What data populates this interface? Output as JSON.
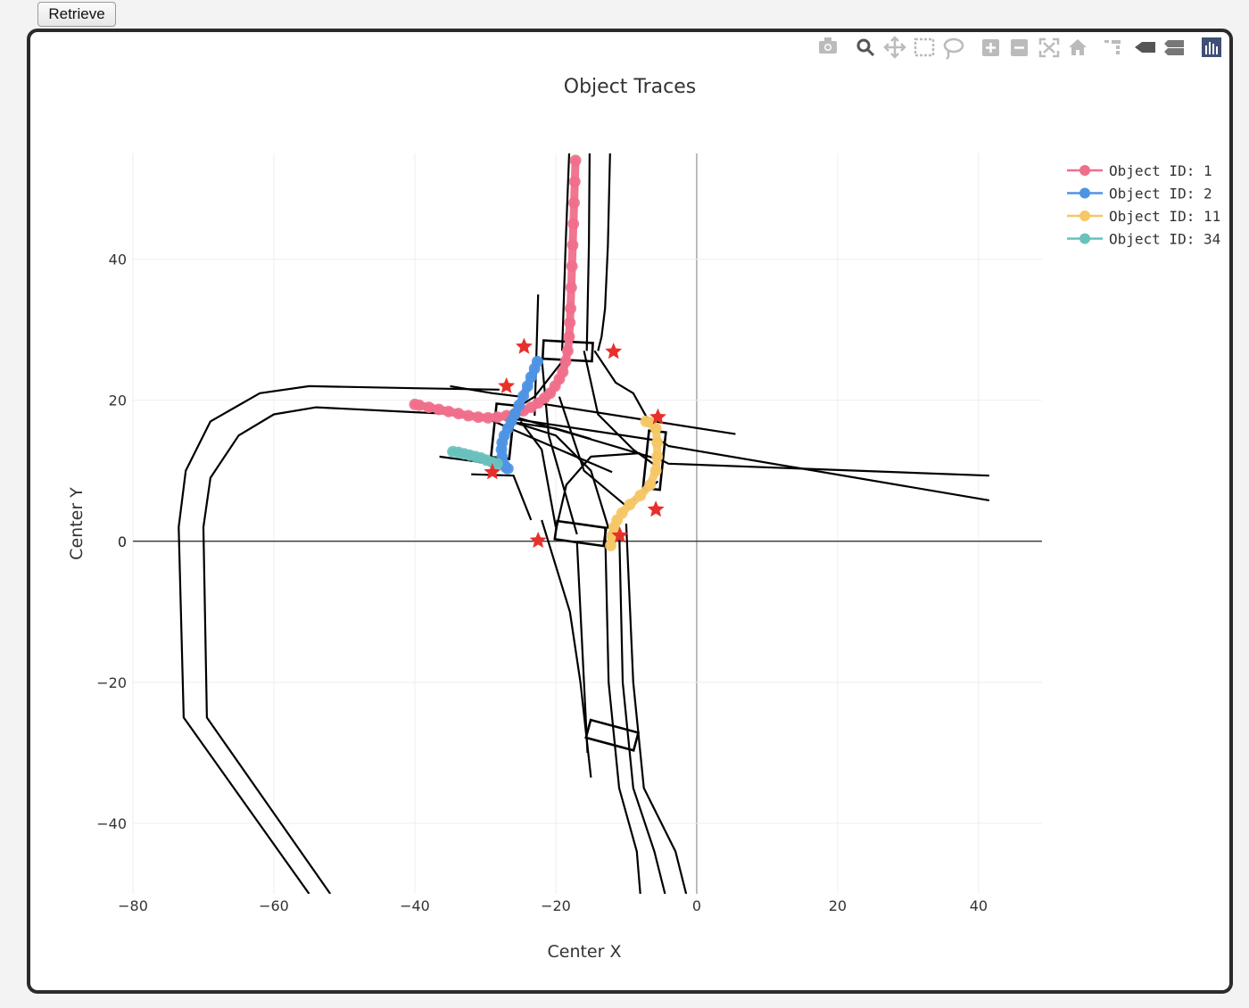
{
  "toolbar": {
    "retrieve_label": "Retrieve",
    "modebar_icons": [
      "camera-icon",
      "zoom-icon",
      "pan-icon",
      "box-select-icon",
      "lasso-select-icon",
      "zoom-in-icon",
      "zoom-out-icon",
      "autoscale-icon",
      "reset-axes-icon",
      "spike-lines-icon",
      "hover-closest-icon",
      "hover-compare-icon",
      "plotly-logo-icon"
    ]
  },
  "chart_data": {
    "type": "scatter",
    "title": "Object Traces",
    "xlabel": "Center X",
    "ylabel": "Center Y",
    "xlim": [
      -80,
      49
    ],
    "ylim": [
      -50,
      55
    ],
    "xticks": [
      -80,
      -60,
      -40,
      -20,
      0,
      20,
      40
    ],
    "yticks": [
      -40,
      -20,
      0,
      20,
      40
    ],
    "grid": true,
    "legend_position": "top-right",
    "series": [
      {
        "name": "Object ID: 1",
        "color": "#ef6f8b",
        "x": [
          -17.2,
          -17.3,
          -17.4,
          -17.5,
          -17.6,
          -17.7,
          -17.8,
          -17.9,
          -18.0,
          -18.1,
          -18.3,
          -18.6,
          -19.0,
          -19.5,
          -20.1,
          -20.8,
          -21.6,
          -22.5,
          -23.5,
          -24.6,
          -25.8,
          -27.0,
          -28.3,
          -29.6,
          -31.0,
          -32.4,
          -33.8,
          -35.2,
          -36.6,
          -38.0,
          -39.4,
          -40.0
        ],
        "y": [
          54,
          51,
          48,
          45,
          42,
          39,
          36,
          33,
          31,
          29,
          27,
          25.5,
          24,
          23,
          22,
          21,
          20.3,
          19.6,
          19.0,
          18.5,
          18.1,
          17.8,
          17.6,
          17.5,
          17.6,
          17.8,
          18.1,
          18.4,
          18.7,
          19.0,
          19.3,
          19.4
        ]
      },
      {
        "name": "Object ID: 2",
        "color": "#4f94e3",
        "x": [
          -22.6,
          -23.0,
          -23.5,
          -24.0,
          -24.6,
          -25.2,
          -25.8,
          -26.3,
          -26.8,
          -27.3,
          -27.6,
          -27.7,
          -27.6,
          -27.4,
          -27.1,
          -26.8
        ],
        "y": [
          25.5,
          24.5,
          23.3,
          22.0,
          20.6,
          19.3,
          18.0,
          17.0,
          16.0,
          15.0,
          14.0,
          13.0,
          12.0,
          11.0,
          10.5,
          10.3
        ]
      },
      {
        "name": "Object ID: 11",
        "color": "#f5c766",
        "x": [
          -7.2,
          -6.5,
          -5.8,
          -5.6,
          -5.6,
          -5.8,
          -6.6,
          -8.0,
          -9.5,
          -10.6,
          -11.3,
          -11.7,
          -12.0,
          -12.2
        ],
        "y": [
          17.0,
          16.8,
          16.0,
          14.0,
          12.0,
          10.0,
          8.0,
          6.5,
          5.2,
          4.0,
          3.0,
          2.0,
          0.8,
          -0.6
        ]
      },
      {
        "name": "Object ID: 34",
        "color": "#68c1bd",
        "x": [
          -34.6,
          -33.8,
          -33.0,
          -32.2,
          -31.4,
          -30.6,
          -29.8,
          -29.0,
          -28.3
        ],
        "y": [
          12.7,
          12.6,
          12.4,
          12.2,
          12.0,
          11.8,
          11.5,
          11.2,
          11.0
        ]
      }
    ],
    "markers": {
      "symbol": "star",
      "color": "#e8302a",
      "x": [
        -24.5,
        -11.8,
        -27.0,
        -29.0,
        -5.5,
        -5.8,
        -22.5,
        -10.9
      ],
      "y": [
        27.6,
        26.9,
        22.0,
        9.8,
        17.6,
        4.5,
        0.1,
        0.8
      ]
    },
    "map_lines": {
      "color": "#000000",
      "lines": [
        {
          "x": [
            -18.1,
            -18.6,
            -19.1
          ],
          "y": [
            55,
            42,
            27
          ]
        },
        {
          "x": [
            -12.3,
            -12.6,
            -13.0,
            -13.5,
            -14.0
          ],
          "y": [
            55,
            42,
            33,
            29,
            27
          ]
        },
        {
          "x": [
            -15.2,
            -15.3,
            -15.6
          ],
          "y": [
            55,
            42,
            27
          ]
        },
        {
          "x": [
            -18.3,
            -23.0,
            -27.5,
            -40.0,
            -54.0,
            -60.0,
            -65.0,
            -69.0,
            -70.0,
            -69.5,
            -52.0
          ],
          "y": [
            26.5,
            20.5,
            17.7,
            18.3,
            19.0,
            18.0,
            15.0,
            9.0,
            2.0,
            -25.0,
            -50.0
          ]
        },
        {
          "x": [
            -28.0,
            -40.0,
            -55.0,
            -62.0,
            -69.0,
            -72.5,
            -73.5,
            -72.8,
            -55.0
          ],
          "y": [
            21.5,
            21.7,
            22.0,
            21.0,
            17.0,
            10.0,
            2.0,
            -25.0,
            -50.0
          ]
        },
        {
          "x": [
            -27.0,
            -5.0,
            -4.0,
            41.5
          ],
          "y": [
            18.0,
            11.5,
            11.0,
            9.3
          ]
        },
        {
          "x": [
            -27.0,
            -5.0,
            -4.0,
            41.5
          ],
          "y": [
            17.5,
            14.2,
            13.5,
            5.8
          ]
        },
        {
          "x": [
            -22.0,
            5.5
          ],
          "y": [
            19.5,
            15.2
          ]
        },
        {
          "x": [
            -29.5,
            -12.0
          ],
          "y": [
            17.3,
            9.8
          ]
        },
        {
          "x": [
            -14.5,
            -11.5,
            -9.0,
            -6.5
          ],
          "y": [
            27.0,
            22.5,
            21.0,
            16.5
          ]
        },
        {
          "x": [
            -32.0,
            -26.0,
            -23.5
          ],
          "y": [
            9.5,
            9.3,
            3.0
          ]
        },
        {
          "x": [
            -36.5,
            -29.0
          ],
          "y": [
            12.0,
            11.0
          ]
        },
        {
          "x": [
            -22.0,
            -18.0,
            -16.5,
            -15.0
          ],
          "y": [
            3.0,
            -10.0,
            -20.0,
            -33.5
          ]
        },
        {
          "x": [
            -13.0,
            -12.5,
            -11.0,
            -8.5,
            -8.0
          ],
          "y": [
            2.0,
            -20.0,
            -35.0,
            -44.0,
            -50.0
          ]
        },
        {
          "x": [
            -11.0,
            -10.5,
            -9.0,
            -6.0,
            -4.5
          ],
          "y": [
            2.0,
            -20.0,
            -35.0,
            -44.0,
            -50.0
          ]
        },
        {
          "x": [
            -10.0,
            -9.0,
            -7.5,
            -3.0,
            -1.5
          ],
          "y": [
            2.5,
            -20.0,
            -35.0,
            -44.0,
            -50.0
          ]
        },
        {
          "x": [
            -17.0,
            -16.0,
            -15.5
          ],
          "y": [
            0,
            -20.0,
            -30.0
          ]
        },
        {
          "x": [
            -19.5,
            -16.0,
            -10.0,
            -5.5
          ],
          "y": [
            20.5,
            10.0,
            5.0,
            8.5
          ]
        },
        {
          "x": [
            -20.0,
            -18.5,
            -15.0,
            -8.0
          ],
          "y": [
            1.5,
            8.0,
            12.0,
            12.5
          ]
        },
        {
          "x": [
            -25.0,
            -22.0,
            -20.0
          ],
          "y": [
            17.0,
            13.0,
            2.0
          ]
        },
        {
          "x": [
            -16.0,
            -14.0,
            -9.0,
            -5.5
          ],
          "y": [
            27.0,
            18.0,
            13.0,
            10.5
          ]
        },
        {
          "x": [
            -28.0,
            -20.0,
            -15.0,
            -12.5
          ],
          "y": [
            17.5,
            15.0,
            10.0,
            1.8
          ]
        },
        {
          "x": [
            -22.0,
            -21.0,
            -19.0,
            -17.0
          ],
          "y": [
            26.0,
            15.0,
            8.0,
            1.0
          ]
        },
        {
          "x": [
            -27.0,
            -20.0,
            -15.0
          ],
          "y": [
            17.0,
            16.0,
            14.5
          ]
        },
        {
          "x": [
            -22.5,
            -23.0
          ],
          "y": [
            35.0,
            17.8
          ]
        },
        {
          "x": [
            -35.0,
            -29.0,
            -25.0
          ],
          "y": [
            22.0,
            21.0,
            20.5
          ]
        }
      ],
      "boxes": [
        {
          "cx": -18.3,
          "cy": 27.0,
          "w": 7.0,
          "h": 2.6,
          "angle": -3
        },
        {
          "cx": -27.5,
          "cy": 15.6,
          "w": 2.6,
          "h": 7.6,
          "angle": -6
        },
        {
          "cx": -6.0,
          "cy": 11.5,
          "w": 2.4,
          "h": 8.2,
          "angle": -6
        },
        {
          "cx": -16.5,
          "cy": 1.1,
          "w": 7.0,
          "h": 2.6,
          "angle": -8
        },
        {
          "cx": -12.0,
          "cy": -27.5,
          "w": 7.0,
          "h": 2.6,
          "angle": -15
        }
      ]
    }
  }
}
